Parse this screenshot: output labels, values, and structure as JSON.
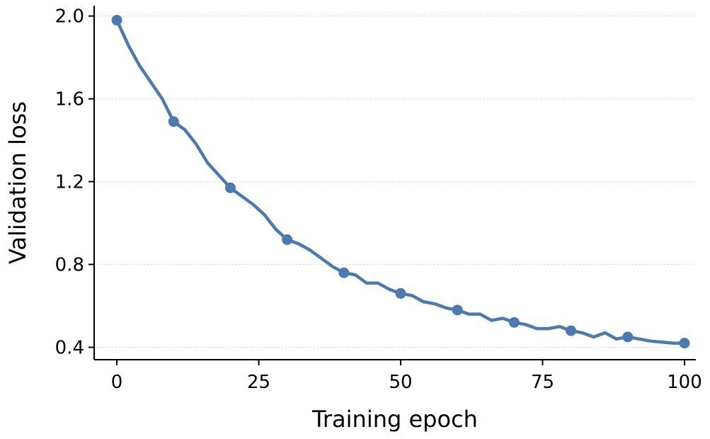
{
  "chart_data": {
    "type": "line",
    "title": "",
    "xlabel": "Training epoch",
    "ylabel": "Validation loss",
    "xlim": [
      -4,
      102
    ],
    "ylim": [
      0.34,
      2.05
    ],
    "xticks": [
      0,
      25,
      50,
      75,
      100
    ],
    "yticks": [
      0.4,
      0.8,
      1.2,
      1.6,
      2.0
    ],
    "ytick_labels": [
      "0.4",
      "0.8",
      "1.2",
      "1.6",
      "2.0"
    ],
    "grid": "horizontal dotted",
    "legend": "none",
    "color": "#4a7aaf",
    "series": [
      {
        "x": [
          0,
          2,
          4,
          6,
          8,
          10,
          12,
          14,
          16,
          18,
          20,
          22,
          24,
          26,
          28,
          30,
          32,
          34,
          36,
          38,
          40,
          42,
          44,
          46,
          48,
          50,
          52,
          54,
          56,
          58,
          60,
          62,
          64,
          66,
          68,
          70,
          72,
          74,
          76,
          78,
          80,
          82,
          84,
          86,
          88,
          90,
          92,
          94,
          96,
          98,
          100
        ],
        "y": [
          1.98,
          1.86,
          1.76,
          1.68,
          1.6,
          1.49,
          1.45,
          1.38,
          1.29,
          1.23,
          1.17,
          1.13,
          1.09,
          1.04,
          0.97,
          0.92,
          0.9,
          0.87,
          0.83,
          0.79,
          0.76,
          0.75,
          0.71,
          0.71,
          0.68,
          0.66,
          0.65,
          0.62,
          0.61,
          0.59,
          0.58,
          0.56,
          0.56,
          0.53,
          0.54,
          0.52,
          0.51,
          0.49,
          0.49,
          0.5,
          0.48,
          0.47,
          0.45,
          0.47,
          0.44,
          0.45,
          0.44,
          0.43,
          0.425,
          0.42,
          0.42
        ],
        "markers_x": [
          0,
          10,
          20,
          30,
          40,
          50,
          60,
          70,
          80,
          90,
          100
        ],
        "markers_y": [
          1.98,
          1.49,
          1.17,
          0.92,
          0.76,
          0.66,
          0.58,
          0.52,
          0.48,
          0.45,
          0.42
        ]
      }
    ]
  }
}
